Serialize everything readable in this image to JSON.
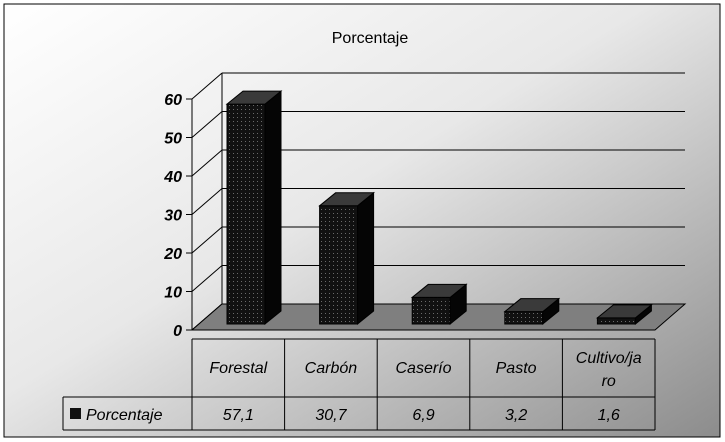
{
  "chart_data": {
    "type": "bar",
    "title": "Porcentaje",
    "categories": [
      "Forestal",
      "Carbón",
      "Caserío",
      "Pasto",
      "Cultivo/jaro"
    ],
    "category_label_lines": [
      [
        "Forestal"
      ],
      [
        "Carbón"
      ],
      [
        "Caserío"
      ],
      [
        "Pasto"
      ],
      [
        "Cultivo/ja",
        "ro"
      ]
    ],
    "series": [
      {
        "name": "Porcentaje",
        "values": [
          57.1,
          30.7,
          6.9,
          3.2,
          1.6
        ],
        "color": "#111111"
      }
    ],
    "value_labels": [
      "57,1",
      "30,7",
      "6,9",
      "3,2",
      "1,6"
    ],
    "y_ticks": [
      "0",
      "10",
      "20",
      "30",
      "40",
      "50",
      "60"
    ],
    "ylim": [
      0,
      60
    ],
    "grid": true,
    "legend": "data-table-left",
    "style": "3d-columns-with-data-table",
    "colors": {
      "background_light": "#ffffff",
      "background_dark": "#8c8c8c",
      "floor": "#7f7f7f",
      "bar_front": "#111111",
      "bar_top": "#3a3a3a",
      "bar_side": "#050505"
    }
  }
}
